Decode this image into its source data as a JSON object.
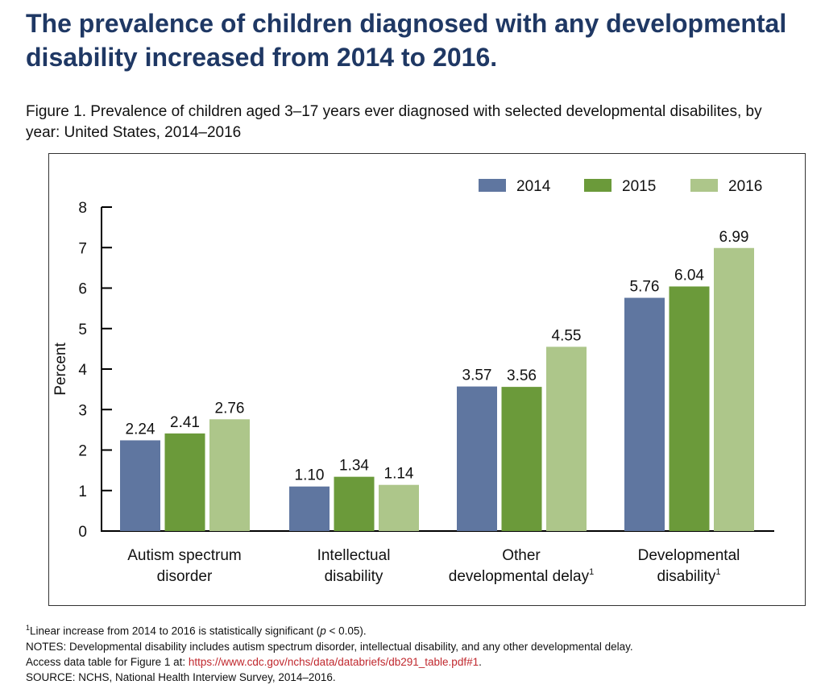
{
  "headline": "The prevalence of children diagnosed with any developmental disability increased from 2014 to 2016.",
  "caption": "Figure 1. Prevalence of children aged 3–17 years ever diagnosed with selected developmental disabilites, by year: United States, 2014–2016",
  "chart_data": {
    "type": "bar",
    "ylabel": "Percent",
    "ylim": [
      0,
      8
    ],
    "yticks": [
      "0",
      "1",
      "2",
      "3",
      "4",
      "5",
      "6",
      "7",
      "8"
    ],
    "grid": false,
    "legend_placement": "top-right",
    "categories": [
      {
        "line1": "Autism spectrum",
        "line2": "disorder",
        "sup": ""
      },
      {
        "line1": "Intellectual",
        "line2": "disability",
        "sup": ""
      },
      {
        "line1": "Other",
        "line2": "developmental delay",
        "sup": "1"
      },
      {
        "line1": "Developmental",
        "line2": "disability",
        "sup": "1"
      }
    ],
    "series": [
      {
        "name": "2014",
        "color": "#5f76a0",
        "values": [
          2.24,
          1.1,
          3.57,
          5.76
        ],
        "labels": [
          "2.24",
          "1.10",
          "3.57",
          "5.76"
        ]
      },
      {
        "name": "2015",
        "color": "#6b9a3a",
        "values": [
          2.41,
          1.34,
          3.56,
          6.04
        ],
        "labels": [
          "2.41",
          "1.34",
          "3.56",
          "6.04"
        ]
      },
      {
        "name": "2016",
        "color": "#adc68a",
        "values": [
          2.76,
          1.14,
          4.55,
          6.99
        ],
        "labels": [
          "2.76",
          "1.14",
          "4.55",
          "6.99"
        ]
      }
    ]
  },
  "notes": {
    "footnote_sup": "1",
    "footnote_pre": "Linear increase from 2014 to 2016 is statistically significant (",
    "footnote_p": "p",
    "footnote_post": " < 0.05).",
    "notes": "NOTES: Developmental disability includes autism spectrum disorder, intellectual disability, and any other developmental delay.",
    "access_pre": "Access data table for Figure 1 at: ",
    "access_link": "https://www.cdc.gov/nchs/data/databriefs/db291_table.pdf#1",
    "access_post": ".",
    "source": "SOURCE: NCHS, National Health Interview Survey, 2014–2016."
  }
}
